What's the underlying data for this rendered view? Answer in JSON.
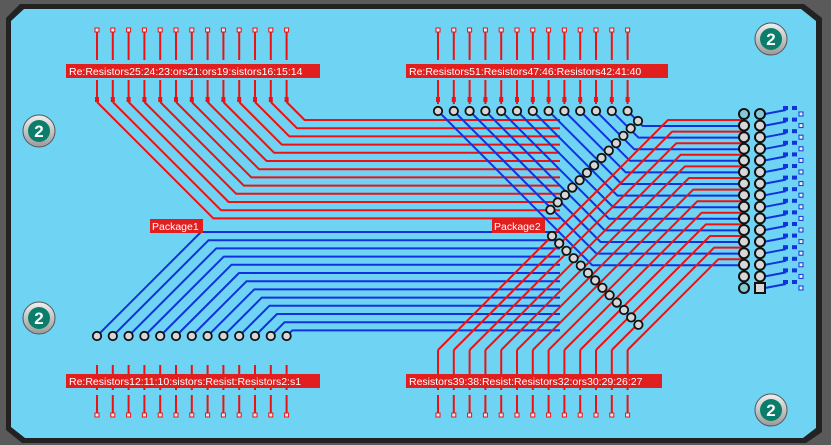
{
  "board": {
    "color": "#6fd3f4",
    "outline": "#222222",
    "trace_top_color": "#ee1111",
    "trace_bottom_color": "#1133dd",
    "label_bg": "#e21f1f",
    "label_text": "#ffffff"
  },
  "component_labels": {
    "top_left": "Re:Resistors25:24:23:ors21:ors19:sistors16:15:14",
    "top_right": "Re:Resistors51:Resistors47:46:Resistors42:41:40",
    "bottom_left": "Re:Resistors12:11:10:sistors:Resist:Resistors2:s1",
    "bottom_right": "Resistors39:38:Resist:Resistors32:ors30:29:26:27",
    "package1": "Package1",
    "package2": "Package2"
  },
  "mounting_holes": [
    {
      "label": "2"
    },
    {
      "label": "2"
    },
    {
      "label": "2"
    },
    {
      "label": "2"
    }
  ],
  "header_pins": 16
}
